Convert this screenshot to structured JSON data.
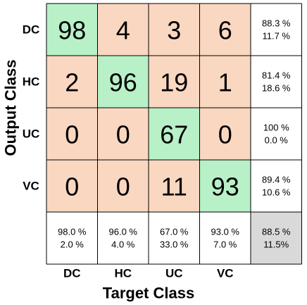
{
  "chart_data": {
    "type": "heatmap",
    "xlabel": "Target Class",
    "ylabel": "Output Class",
    "categories": [
      "DC",
      "HC",
      "UC",
      "VC"
    ],
    "matrix": [
      [
        98,
        4,
        3,
        6
      ],
      [
        2,
        96,
        19,
        1
      ],
      [
        0,
        0,
        67,
        0
      ],
      [
        0,
        0,
        11,
        93
      ]
    ],
    "row_summary": [
      [
        "88.3 %",
        "11.7 %"
      ],
      [
        "81.4 %",
        "18.6 %"
      ],
      [
        "100 %",
        "0.0 %"
      ],
      [
        "89.4 %",
        "10.6 %"
      ]
    ],
    "col_summary": [
      [
        "98.0 %",
        "2.0 %"
      ],
      [
        "96.0 %",
        "4.0 %"
      ],
      [
        "67.0 %",
        "33.0 %"
      ],
      [
        "93.0 %",
        "7.0 %"
      ]
    ],
    "overall": [
      "88.5 %",
      "11.5%"
    ],
    "colors": {
      "correct": "#b8f0c8",
      "incorrect": "#fad7c1",
      "summary": "#ffffff",
      "overall": "#d9d9d9",
      "line": "#000000"
    }
  }
}
